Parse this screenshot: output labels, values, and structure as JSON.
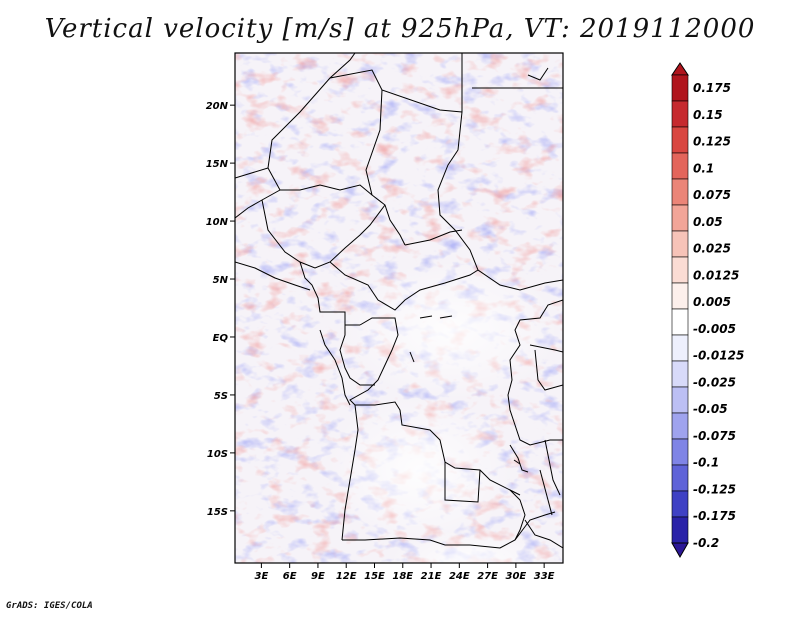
{
  "title": "Vertical velocity [m/s] at 925hPa, VT: 2019112000",
  "credit": "GrADS: IGES/COLA",
  "map": {
    "lat_labels": [
      {
        "lat": 20,
        "label": "20N"
      },
      {
        "lat": 15,
        "label": "15N"
      },
      {
        "lat": 10,
        "label": "10N"
      },
      {
        "lat": 5,
        "label": "5N"
      },
      {
        "lat": 0,
        "label": "EQ"
      },
      {
        "lat": -5,
        "label": "5S"
      },
      {
        "lat": -10,
        "label": "10S"
      },
      {
        "lat": -15,
        "label": "15S"
      }
    ],
    "lon_labels": [
      {
        "lon": 3,
        "label": "3E"
      },
      {
        "lon": 6,
        "label": "6E"
      },
      {
        "lon": 9,
        "label": "9E"
      },
      {
        "lon": 12,
        "label": "12E"
      },
      {
        "lon": 15,
        "label": "15E"
      },
      {
        "lon": 18,
        "label": "18E"
      },
      {
        "lon": 21,
        "label": "21E"
      },
      {
        "lon": 24,
        "label": "24E"
      },
      {
        "lon": 27,
        "label": "27E"
      },
      {
        "lon": 30,
        "label": "30E"
      },
      {
        "lon": 33,
        "label": "33E"
      }
    ],
    "lat_range": [
      -19.5,
      24.5
    ],
    "lon_range": [
      0.2,
      35
    ]
  },
  "colorbar": {
    "levels": [
      {
        "label": "0.175",
        "color": "#b0151d"
      },
      {
        "label": "0.15",
        "color": "#c62a2f"
      },
      {
        "label": "0.125",
        "color": "#d94741"
      },
      {
        "label": "0.1",
        "color": "#e3655b"
      },
      {
        "label": "0.075",
        "color": "#eb8578"
      },
      {
        "label": "0.05",
        "color": "#f2a598"
      },
      {
        "label": "0.025",
        "color": "#f7c3b8"
      },
      {
        "label": "0.0125",
        "color": "#fbdcd4"
      },
      {
        "label": "0.005",
        "color": "#fdf0ec"
      },
      {
        "label": "-0.005",
        "color": "#ffffff"
      },
      {
        "label": "-0.0125",
        "color": "#eef0fd"
      },
      {
        "label": "-0.025",
        "color": "#d8daf9"
      },
      {
        "label": "-0.05",
        "color": "#bcbff4"
      },
      {
        "label": "-0.075",
        "color": "#9fa3ee"
      },
      {
        "label": "-0.1",
        "color": "#7f84e6"
      },
      {
        "label": "-0.125",
        "color": "#5f63d8"
      },
      {
        "label": "-0.175",
        "color": "#3f41c4"
      },
      {
        "label": "-0.2",
        "color": "#2a22a8"
      }
    ],
    "top_color": "#b0151d",
    "bottom_color": "#2b1796"
  }
}
